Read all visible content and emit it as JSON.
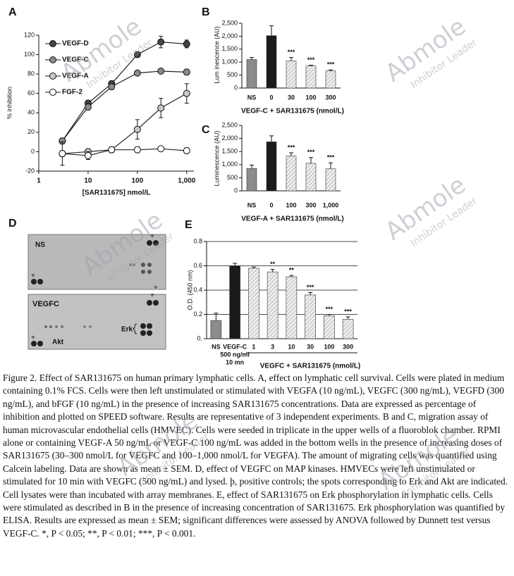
{
  "chart_data": [
    {
      "type": "line",
      "panel": "A",
      "xlog": true,
      "xlabel": "[SAR131675] nmol/L",
      "ylabel": "% inhibition",
      "xlim": [
        1,
        1400
      ],
      "xticks": [
        1,
        10,
        100,
        {
          "value": 1000,
          "label": "1,000"
        }
      ],
      "ylim": [
        -20,
        120
      ],
      "yticks": [
        -20,
        0,
        20,
        40,
        60,
        80,
        100,
        120
      ],
      "x": [
        3,
        10,
        30,
        100,
        300,
        1000
      ],
      "series": [
        {
          "name": "VEGF-D",
          "color": "#444444",
          "values": [
            11,
            50,
            70,
            100,
            113,
            111
          ],
          "errors": [
            3,
            3,
            3,
            2,
            6,
            4
          ]
        },
        {
          "name": "VEGF-C",
          "color": "#8a8a8a",
          "values": [
            11,
            46,
            67,
            81,
            83,
            82
          ],
          "errors": [
            3,
            3,
            3,
            2,
            2,
            3
          ]
        },
        {
          "name": "VEGF-A",
          "color": "#c8c8c8",
          "values": [
            -2,
            0,
            2,
            23,
            45,
            60
          ],
          "errors": [
            3,
            3,
            3,
            10,
            10,
            10
          ]
        },
        {
          "name": "FGF-2",
          "color": "#ffffff",
          "values": [
            -2,
            -4,
            2,
            2,
            3,
            1
          ],
          "errors": [
            12,
            4,
            3,
            3,
            2,
            3
          ]
        }
      ]
    },
    {
      "type": "bar",
      "panel": "B",
      "xlabel": "VEGF-C + SAR131675 (nmol/L)",
      "ylabel": "Lum inescence (AU)",
      "categories": [
        "NS",
        "0",
        "30",
        "100",
        "300"
      ],
      "values": [
        1100,
        2020,
        1050,
        850,
        660
      ],
      "errors": [
        80,
        380,
        130,
        30,
        40
      ],
      "significance": [
        null,
        null,
        "***",
        "***",
        "***"
      ],
      "colors": [
        "#8c8c8c",
        "#1a1a1a",
        "#e8e8e8",
        "#e8e8e8",
        "#e8e8e8"
      ],
      "hatched": [
        false,
        false,
        true,
        true,
        true
      ],
      "ylim": [
        0,
        2500
      ],
      "yticks": [
        0,
        500,
        {
          "value": 1000,
          "label": "1,000"
        },
        {
          "value": 1500,
          "label": "1,500"
        },
        {
          "value": 2000,
          "label": "2,000"
        },
        {
          "value": 2500,
          "label": "2,500"
        }
      ]
    },
    {
      "type": "bar",
      "panel": "C",
      "xlabel": "VEGF-A + SAR131675 (nmol/L)",
      "ylabel": "Luminescence (AU)",
      "categories": [
        "NS",
        "0",
        "100",
        "300",
        "1,000"
      ],
      "values": [
        850,
        1870,
        1330,
        1050,
        840
      ],
      "errors": [
        130,
        230,
        120,
        220,
        230
      ],
      "significance": [
        null,
        null,
        "***",
        "***",
        "***"
      ],
      "colors": [
        "#8c8c8c",
        "#1a1a1a",
        "#e8e8e8",
        "#e8e8e8",
        "#e8e8e8"
      ],
      "hatched": [
        false,
        false,
        true,
        true,
        true
      ],
      "ylim": [
        0,
        2500
      ],
      "yticks": [
        0,
        500,
        {
          "value": 1000,
          "label": "1,000"
        },
        {
          "value": 1500,
          "label": "1,500"
        },
        {
          "value": 2000,
          "label": "2,000"
        },
        {
          "value": 2500,
          "label": "2,500"
        }
      ]
    },
    {
      "type": "bar",
      "panel": "E",
      "xlabel": "VEGFC + SAR131675 (nmol/L)",
      "ylabel": "O.D. (450 nm)",
      "categories": [
        "NS",
        "VEGF-C",
        "1",
        "3",
        "10",
        "30",
        "100",
        "300"
      ],
      "category_notes": [
        "500 ng/ml",
        "10 mn"
      ],
      "values": [
        0.15,
        0.6,
        0.58,
        0.55,
        0.51,
        0.36,
        0.19,
        0.16
      ],
      "errors": [
        0.06,
        0.02,
        0.01,
        0.02,
        0.01,
        0.02,
        0.01,
        0.02
      ],
      "significance": [
        null,
        null,
        null,
        "**",
        "**",
        "***",
        "***",
        "***"
      ],
      "colors": [
        "#8c8c8c",
        "#1a1a1a",
        "#e8e8e8",
        "#e8e8e8",
        "#e8e8e8",
        "#e8e8e8",
        "#e8e8e8",
        "#e8e8e8"
      ],
      "hatched": [
        false,
        false,
        true,
        true,
        true,
        true,
        true,
        true
      ],
      "ylim": [
        0,
        0.8
      ],
      "yticks": [
        {
          "value": 0,
          "label": "0."
        },
        0.2,
        0.4,
        0.6,
        0.8
      ],
      "grid": true
    }
  ],
  "blot": {
    "panel": "D",
    "top_label": "NS",
    "bottom_label": "VEGFC",
    "erk": "Erk",
    "akt": "Akt",
    "control_mark": "+"
  },
  "caption": "Figure 2. Effect of SAR131675 on human primary lymphatic cells. A, effect on lymphatic cell survival. Cells were plated in medium containing 0.1% FCS. Cells were then left unstimulated or stimulated with VEGFA (10 ng/mL), VEGFC (300 ng/mL), VEGFD (300 ng/mL), and bFGF (10 ng/mL) in the presence of increasing SAR131675 concentrations. Data are expressed as percentage of inhibition and plotted on SPEED software. Results are representative of 3 independent experiments. B and C, migration assay of human microvascular endothelial cells (HMVEC). Cells were seeded in triplicate in the upper wells of a fluoroblok chamber. RPMI alone or containing VEGF-A 50 ng/mL or VEGF-C 100 ng/mL was added in the bottom wells in the presence of increasing doses of SAR131675 (30–300 nmol/L for VEGFC and 100–1,000 nmol/L for VEGFA). The amount of migrating cells was quantified using Calcein labeling. Data are shown as mean ± SEM. D, effect of VEGFC on MAP kinases. HMVECs were left unstimulated or stimulated for 10 min with VEGFC (500 ng/mL) and lysed. þ, positive controls; the spots corresponding to Erk and Akt are indicated. Cell lysates were than incubated with array membranes. E, effect of SAR131675 on Erk phosphorylation in lymphatic cells. Cells were stimulated as described in B in the presence of increasing concentration of SAR131675. Erk phosphorylation was quantified by ELISA. Results are expressed as mean ± SEM; significant differences were assessed by ANOVA followed by Dunnett test versus VEGF-C. *, P < 0.05; **, P < 0.01; ***, P < 0.001.",
  "watermark": {
    "brand": "Abmole",
    "tagline": "Inhibitor Leader"
  }
}
